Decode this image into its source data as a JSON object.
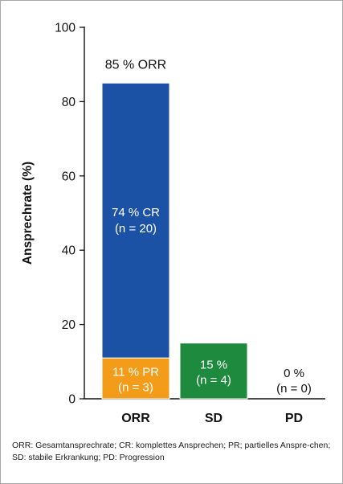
{
  "chart_data": {
    "type": "bar",
    "ylabel": "Ansprechrate (%)",
    "xlabel": "",
    "ylim": [
      0,
      100
    ],
    "yticks": [
      "0",
      "20",
      "40",
      "60",
      "80",
      "100"
    ],
    "categories": [
      "ORR",
      "SD",
      "PD"
    ],
    "bars": [
      {
        "category": "ORR",
        "top_label": "85 % ORR",
        "segments": [
          {
            "name": "PR",
            "value": 11,
            "color": "#f39c1a",
            "label_line1": "11 % PR",
            "label_line2": "(n = 3)"
          },
          {
            "name": "CR",
            "value": 74,
            "color": "#1b52a6",
            "label_line1": "74 % CR",
            "label_line2": "(n = 20)"
          }
        ]
      },
      {
        "category": "SD",
        "segments": [
          {
            "name": "SD",
            "value": 15,
            "color": "#1e8a3e",
            "label_line1": "15 %",
            "label_line2": "(n = 4)"
          }
        ]
      },
      {
        "category": "PD",
        "segments": [
          {
            "name": "PD",
            "value": 0,
            "color": "#ffffff",
            "label_line1": "0 %",
            "label_line2": "(n = 0)"
          }
        ]
      }
    ]
  },
  "footnote": "ORR: Gesamtansprechrate; CR: komplettes Ansprechen; PR; partielles Anspre-chen; SD: stabile Erkrankung; PD: Progression"
}
